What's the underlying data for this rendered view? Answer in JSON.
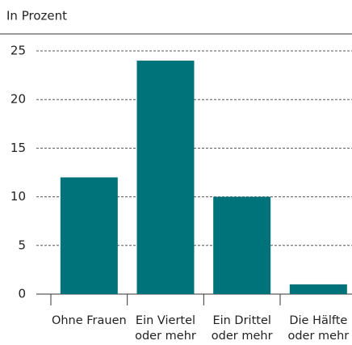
{
  "chart_data": {
    "type": "bar",
    "y_label": "In Prozent",
    "categories": [
      "Ohne Frauen",
      "Ein Viertel\noder mehr",
      "Ein Drittel\noder mehr",
      "Die Hälfte\noder mehr"
    ],
    "values": [
      12,
      24,
      10,
      1
    ],
    "color": "#00727a",
    "ylim": [
      0,
      25
    ],
    "yticks": [
      0,
      5,
      10,
      15,
      20,
      25
    ],
    "grid": true
  }
}
